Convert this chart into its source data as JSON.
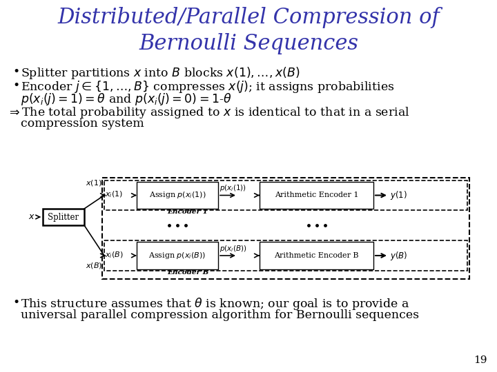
{
  "title_line1": "Distributed/Parallel Compression of",
  "title_line2": "Bernoulli Sequences",
  "title_color": "#3333aa",
  "title_fontsize": 22,
  "bg_color": "#ffffff",
  "bullet1": "Splitter partitions $x$ into $B$ blocks $x(1),\\ldots,x(B)$",
  "bullet2a": "Encoder $j\\in\\{1,\\ldots,B\\}$ compresses $x(j)$; it assigns probabilities",
  "bullet2b": "$p(x_i(j)=1)=\\theta$ and $p(x_i(j)=0)=1$-$\\theta$",
  "arrow_text": "$\\Rightarrow$The total probability assigned to $x$ is identical to that in a serial",
  "arrow_text2": "compression system",
  "bullet3a": "This structure assumes that $\\theta$ is known; our goal is to provide a",
  "bullet3b": "universal parallel compression algorithm for Bernoulli sequences",
  "page_num": "19",
  "text_color": "#000000",
  "body_fontsize": 12.5,
  "diagram": {
    "splitter_label": "Splitter",
    "assign1_label": "Assign $p(x_i(1))$",
    "encoder1_label": "Encoder 1",
    "arith1_label": "Arithmetic Encoder 1",
    "assign2_label": "Assign $p(x_i(B))$",
    "encoderB_label": "Encoder B",
    "arithB_label": "Arithmetic Encoder B",
    "x_label": "$x$",
    "x1_label": "$x(1)$",
    "xi1_label": "$x_i(1)$",
    "px1_label": "$p(x_i(1))$",
    "y1_label": "$y(1)$",
    "xB_label": "$x(B)$",
    "xiB_label": "$x_i(B)$",
    "pxB_label": "$p(x_i(B))$",
    "yB_label": "$y(B)$"
  }
}
